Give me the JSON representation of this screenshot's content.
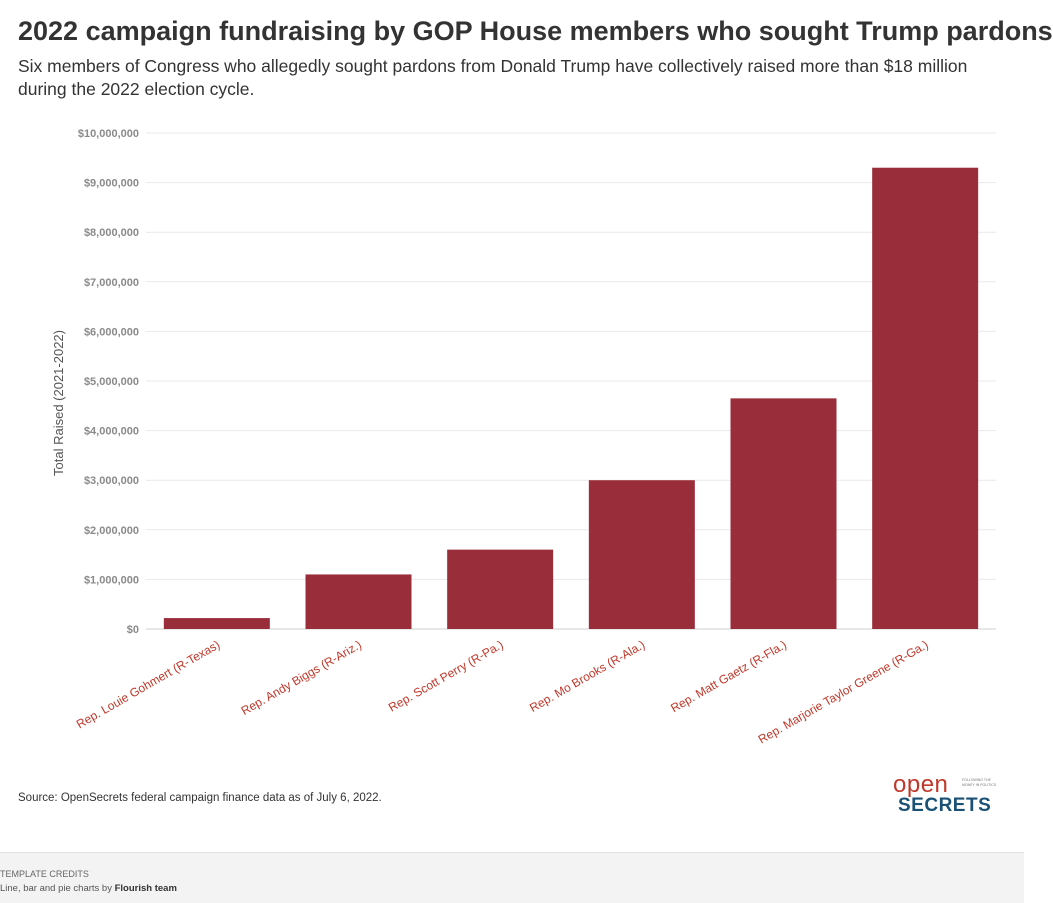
{
  "title": "2022 campaign fundraising by GOP House members who sought Trump pardons",
  "subtitle": "Six members of Congress who allegedly sought pardons from Donald Trump have collectively raised more than $18 million during the 2022 election cycle.",
  "chart_data": {
    "type": "bar",
    "categories": [
      "Rep. Louie Gohmert (R-Texas)",
      "Rep. Andy Biggs (R-Ariz.)",
      "Rep. Scott Perry (R-Pa.)",
      "Rep. Mo Brooks (R-Ala.)",
      "Rep. Matt Gaetz (R-Fla.)",
      "Rep. Marjorie Taylor Greene (R-Ga.)"
    ],
    "values": [
      220000,
      1100000,
      1600000,
      3000000,
      4650000,
      9300000
    ],
    "ylabel": "Total Raised (2021-2022)",
    "xlabel": "",
    "ylim": [
      0,
      10000000
    ],
    "yticks": [
      0,
      1000000,
      2000000,
      3000000,
      4000000,
      5000000,
      6000000,
      7000000,
      8000000,
      9000000,
      10000000
    ],
    "ytick_labels": [
      "$0",
      "$1,000,000",
      "$2,000,000",
      "$3,000,000",
      "$4,000,000",
      "$5,000,000",
      "$6,000,000",
      "$7,000,000",
      "$8,000,000",
      "$9,000,000",
      "$10,000,000"
    ],
    "grid": true,
    "bar_color": "#9a2d3a",
    "label_color": "#c0392b"
  },
  "source": "Source: OpenSecrets federal campaign finance data as of July 6, 2022.",
  "logo": {
    "text_top": "open",
    "text_bottom": "SECRETS",
    "tagline": "FOLLOWING THE MONEY IN POLITICS"
  },
  "footer": {
    "credits_heading": "TEMPLATE CREDITS",
    "credits_prefix": "Line, bar and pie charts by",
    "credits_author": "Flourish team"
  }
}
